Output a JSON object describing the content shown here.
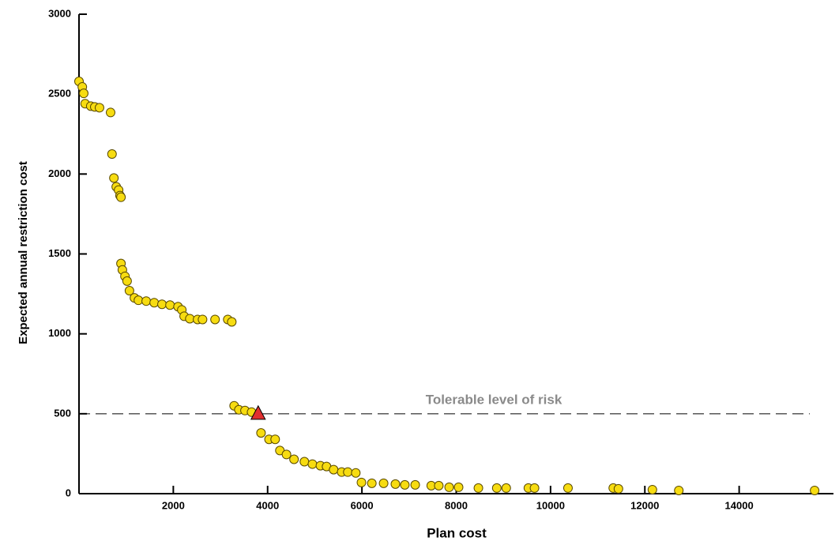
{
  "chart_data": {
    "type": "scatter",
    "x_label": "Plan cost",
    "y_label": "Expected annual restriction cost",
    "annotation": "Tolerable level of risk",
    "threshold": 500,
    "xlim": [
      0,
      16000
    ],
    "ylim": [
      0,
      3000
    ],
    "xticks": [
      2000,
      4000,
      6000,
      8000,
      10000,
      12000,
      14000
    ],
    "yticks": [
      0,
      500,
      1000,
      1500,
      2000,
      2500,
      3000
    ],
    "series": [
      {
        "color": "#f7dc11",
        "x": [
          0,
          70,
          100,
          130,
          250,
          335,
          435,
          670,
          700,
          740,
          790,
          840,
          870,
          890,
          890,
          920,
          975,
          1020,
          1070,
          1175,
          1260,
          1425,
          1595,
          1760,
          1930,
          2100,
          2180,
          2230,
          2350,
          2515,
          2620,
          2885,
          3155,
          3240,
          3290,
          3390,
          3520,
          3660,
          3860,
          4030,
          4160,
          4260,
          4400,
          4560,
          4780,
          4950,
          5120,
          5250,
          5400,
          5570,
          5700,
          5870,
          5990,
          6210,
          6460,
          6710,
          6910,
          7130,
          7470,
          7630,
          7850,
          8050,
          8470,
          8860,
          9060,
          9530,
          9660,
          10370,
          11330,
          11440,
          12160,
          12720,
          15600
        ],
        "values": [
          2580,
          2545,
          2505,
          2440,
          2425,
          2420,
          2415,
          2385,
          2125,
          1975,
          1920,
          1900,
          1865,
          1855,
          1440,
          1400,
          1360,
          1330,
          1270,
          1225,
          1210,
          1205,
          1195,
          1185,
          1180,
          1170,
          1150,
          1110,
          1095,
          1090,
          1090,
          1090,
          1090,
          1075,
          550,
          525,
          520,
          510,
          380,
          340,
          340,
          270,
          245,
          215,
          200,
          185,
          175,
          170,
          150,
          135,
          135,
          130,
          70,
          65,
          65,
          60,
          55,
          55,
          50,
          50,
          40,
          40,
          35,
          35,
          35,
          35,
          35,
          35,
          35,
          30,
          25,
          20,
          20
        ]
      }
    ],
    "highlight": {
      "color": "#e03030",
      "x": 3800,
      "y": 500
    }
  }
}
